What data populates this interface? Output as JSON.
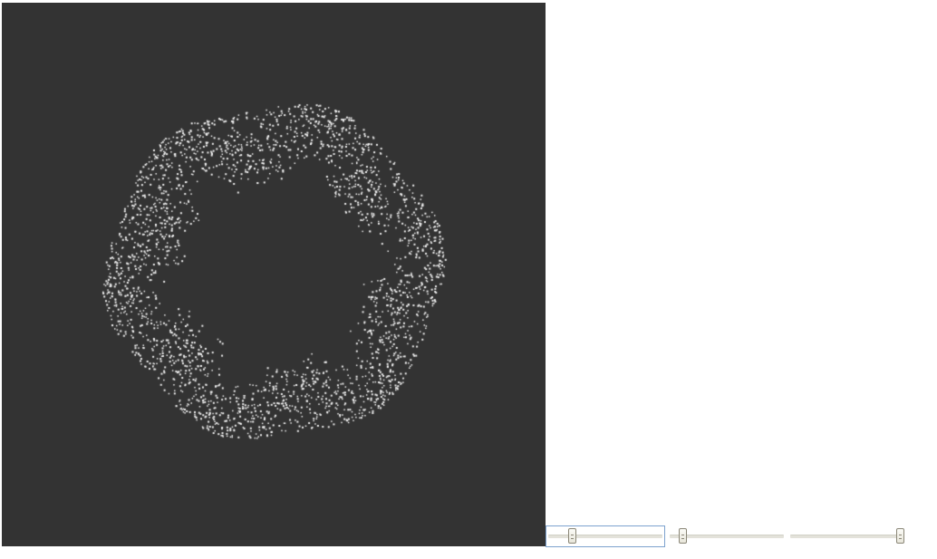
{
  "visualization": {
    "background_color": "#333333",
    "particle_color": "#f0f0f0",
    "particle_count": 2600,
    "lobe_count": 6
  },
  "sliders": [
    {
      "name": "slider-1",
      "value": 0.2,
      "focused": true
    },
    {
      "name": "slider-2",
      "value": 0.1,
      "focused": false
    },
    {
      "name": "slider-3",
      "value": 0.98,
      "focused": false
    }
  ]
}
